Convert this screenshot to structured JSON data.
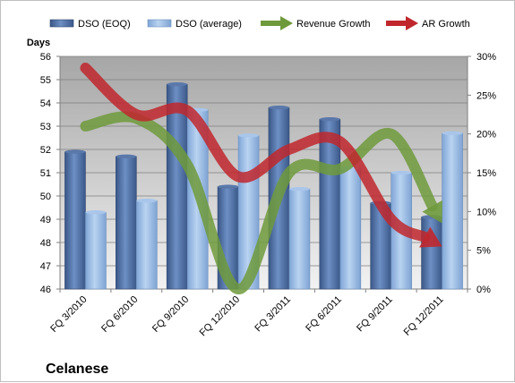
{
  "chart_data": {
    "type": "bar",
    "title": "Celanese",
    "ylabel_left": "Days",
    "categories": [
      "FQ 3/2010",
      "FQ 6/2010",
      "FQ 9/2010",
      "FQ 12/2010",
      "FQ 3/2011",
      "FQ 6/2011",
      "FQ 9/2011",
      "FQ 12/2011"
    ],
    "ylim_left": [
      46,
      56
    ],
    "yticks_left": [
      "46",
      "47",
      "48",
      "49",
      "50",
      "51",
      "52",
      "53",
      "54",
      "55",
      "56"
    ],
    "ylim_right": [
      0,
      0.3
    ],
    "yticks_right": [
      "0%",
      "5%",
      "10%",
      "15%",
      "20%",
      "25%",
      "30%"
    ],
    "grid": true,
    "legend_position": "top",
    "series": [
      {
        "name": "DSO (EOQ)",
        "type": "bar",
        "axis": "left",
        "color": "#4f6fa3",
        "values": [
          51.9,
          51.7,
          54.8,
          50.4,
          53.8,
          53.3,
          49.7,
          49.1
        ]
      },
      {
        "name": "DSO (average)",
        "type": "bar",
        "axis": "left",
        "color": "#8fb3e0",
        "values": [
          49.3,
          49.8,
          53.7,
          52.6,
          50.3,
          51.2,
          51.0,
          52.7
        ]
      },
      {
        "name": "Revenue Growth",
        "type": "line",
        "axis": "right",
        "color": "#6f9a3c",
        "values": [
          0.21,
          0.22,
          0.16,
          0.0,
          0.15,
          0.155,
          0.2,
          0.085
        ]
      },
      {
        "name": "AR Growth",
        "type": "line",
        "axis": "right",
        "color": "#c0272d",
        "values": [
          0.285,
          0.225,
          0.23,
          0.145,
          0.18,
          0.19,
          0.09,
          0.055
        ]
      }
    ]
  }
}
